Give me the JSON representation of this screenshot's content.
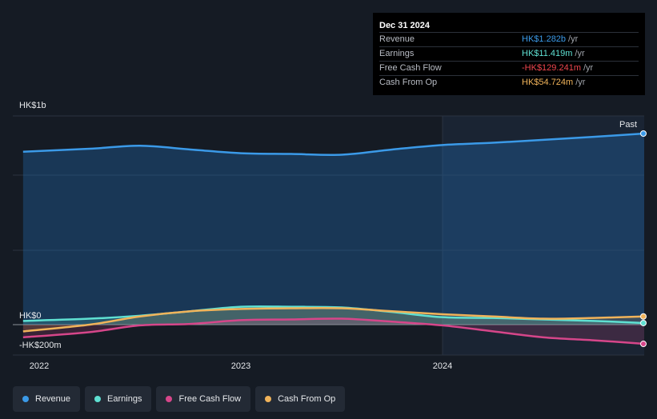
{
  "tooltip": {
    "date": "Dec 31 2024",
    "rows": [
      {
        "label": "Revenue",
        "value": "HK$1.282b",
        "unit": "/yr",
        "color": "#3b9ae8"
      },
      {
        "label": "Earnings",
        "value": "HK$11.419m",
        "unit": "/yr",
        "color": "#5fe0d2"
      },
      {
        "label": "Free Cash Flow",
        "value": "-HK$129.241m",
        "unit": "/yr",
        "color": "#f0464e"
      },
      {
        "label": "Cash From Op",
        "value": "HK$54.724m",
        "unit": "/yr",
        "color": "#f0b35a"
      }
    ]
  },
  "axis": {
    "y_top": "HK$1b",
    "y_zero": "HK$0",
    "y_bottom": "-HK$200m",
    "past_label": "Past"
  },
  "chart_data": {
    "type": "area",
    "x_ticks": [
      "2022",
      "2023",
      "2024"
    ],
    "ylim": [
      -200,
      1400
    ],
    "y_unit": "HK$m",
    "series": [
      {
        "name": "Revenue",
        "color": "#3b9ae8",
        "x": [
          2021.92,
          2022.25,
          2022.5,
          2022.75,
          2023.0,
          2023.25,
          2023.5,
          2023.75,
          2024.0,
          2024.25,
          2024.5,
          2024.75,
          2025.0
        ],
        "y": [
          1160,
          1180,
          1200,
          1175,
          1150,
          1145,
          1140,
          1175,
          1205,
          1220,
          1240,
          1260,
          1282
        ]
      },
      {
        "name": "Earnings",
        "color": "#5fe0d2",
        "x": [
          2021.92,
          2022.25,
          2022.5,
          2022.75,
          2023.0,
          2023.25,
          2023.5,
          2023.75,
          2024.0,
          2024.25,
          2024.5,
          2024.75,
          2025.0
        ],
        "y": [
          25,
          40,
          60,
          90,
          120,
          120,
          115,
          85,
          50,
          45,
          35,
          25,
          11
        ]
      },
      {
        "name": "Free Cash Flow",
        "color": "#d6468a",
        "x": [
          2021.92,
          2022.25,
          2022.5,
          2022.75,
          2023.0,
          2023.25,
          2023.5,
          2023.75,
          2024.0,
          2024.25,
          2024.5,
          2024.75,
          2025.0
        ],
        "y": [
          -85,
          -50,
          -5,
          5,
          30,
          35,
          40,
          20,
          -5,
          -45,
          -85,
          -105,
          -129
        ]
      },
      {
        "name": "Cash From Op",
        "color": "#f0b35a",
        "x": [
          2021.92,
          2022.25,
          2022.5,
          2022.75,
          2023.0,
          2023.25,
          2023.5,
          2023.75,
          2024.0,
          2024.25,
          2024.5,
          2024.75,
          2025.0
        ],
        "y": [
          -45,
          0,
          55,
          90,
          105,
          110,
          110,
          90,
          70,
          55,
          40,
          45,
          55
        ]
      }
    ]
  },
  "legend": [
    {
      "label": "Revenue",
      "color": "#3b9ae8"
    },
    {
      "label": "Earnings",
      "color": "#5fe0d2"
    },
    {
      "label": "Free Cash Flow",
      "color": "#d6468a"
    },
    {
      "label": "Cash From Op",
      "color": "#f0b35a"
    }
  ]
}
